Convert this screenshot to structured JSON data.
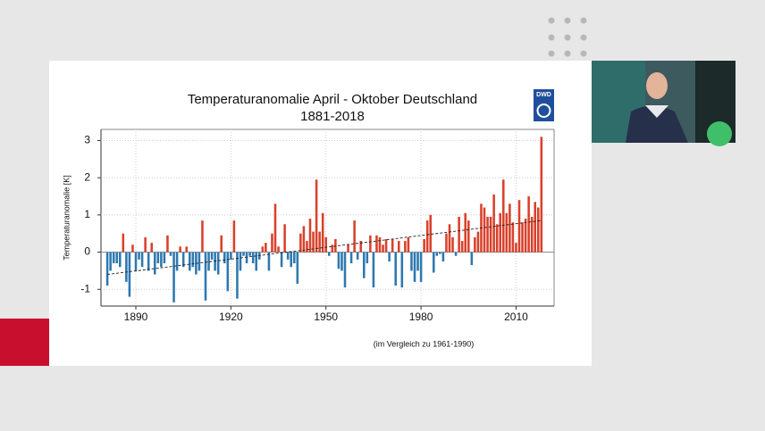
{
  "chart_data": {
    "type": "bar",
    "title": "Temperaturanomalie April - Oktober Deutschland",
    "subtitle": "1881-2018",
    "y_label": "Temperaturanomalie [K]",
    "note": "(im Vergleich zu 1961-1990)",
    "logo": "DWD",
    "positive_color": "#d9412b",
    "negative_color": "#2e78b0",
    "grid": true,
    "xlim": [
      1879,
      2022
    ],
    "xticks": [
      1890,
      1920,
      1950,
      1980,
      2010
    ],
    "ylim": [
      -1.45,
      3.3
    ],
    "yticks": [
      -1,
      0,
      1,
      2,
      3
    ],
    "x": [
      1881,
      1882,
      1883,
      1884,
      1885,
      1886,
      1887,
      1888,
      1889,
      1890,
      1891,
      1892,
      1893,
      1894,
      1895,
      1896,
      1897,
      1898,
      1899,
      1900,
      1901,
      1902,
      1903,
      1904,
      1905,
      1906,
      1907,
      1908,
      1909,
      1910,
      1911,
      1912,
      1913,
      1914,
      1915,
      1916,
      1917,
      1918,
      1919,
      1920,
      1921,
      1922,
      1923,
      1924,
      1925,
      1926,
      1927,
      1928,
      1929,
      1930,
      1931,
      1932,
      1933,
      1934,
      1935,
      1936,
      1937,
      1938,
      1939,
      1940,
      1941,
      1942,
      1943,
      1944,
      1945,
      1946,
      1947,
      1948,
      1949,
      1950,
      1951,
      1952,
      1953,
      1954,
      1955,
      1956,
      1957,
      1958,
      1959,
      1960,
      1961,
      1962,
      1963,
      1964,
      1965,
      1966,
      1967,
      1968,
      1969,
      1970,
      1971,
      1972,
      1973,
      1974,
      1975,
      1976,
      1977,
      1978,
      1979,
      1980,
      1981,
      1982,
      1983,
      1984,
      1985,
      1986,
      1987,
      1988,
      1989,
      1990,
      1991,
      1992,
      1993,
      1994,
      1995,
      1996,
      1997,
      1998,
      1999,
      2000,
      2001,
      2002,
      2003,
      2004,
      2005,
      2006,
      2007,
      2008,
      2009,
      2010,
      2011,
      2012,
      2013,
      2014,
      2015,
      2016,
      2017,
      2018
    ],
    "values": [
      -0.9,
      -0.5,
      -0.3,
      -0.3,
      -0.4,
      0.5,
      -0.8,
      -1.2,
      0.2,
      -0.5,
      -0.2,
      -0.4,
      0.4,
      -0.5,
      0.25,
      -0.6,
      -0.3,
      -0.4,
      -0.3,
      0.45,
      -0.1,
      -1.35,
      -0.5,
      0.15,
      -0.4,
      0.15,
      -0.5,
      -0.4,
      -0.6,
      -0.5,
      0.85,
      -1.3,
      -0.5,
      -0.2,
      -0.5,
      -0.6,
      0.45,
      -0.3,
      -1.05,
      -0.2,
      0.85,
      -1.25,
      -0.5,
      -0.1,
      -0.3,
      -0.1,
      -0.3,
      -0.5,
      -0.2,
      0.15,
      0.25,
      -0.5,
      0.5,
      1.3,
      0.15,
      -0.4,
      0.75,
      -0.2,
      -0.4,
      -0.3,
      -0.85,
      0.5,
      0.7,
      0.3,
      0.9,
      0.55,
      1.95,
      0.55,
      1.05,
      0.4,
      -0.1,
      0.2,
      0.35,
      -0.45,
      -0.5,
      -0.95,
      0.2,
      -0.3,
      0.85,
      -0.2,
      0.3,
      -0.7,
      -0.3,
      0.45,
      -0.95,
      0.45,
      0.4,
      0.2,
      0.35,
      -0.25,
      0.35,
      -0.9,
      0.3,
      -0.95,
      0.3,
      0.4,
      -0.5,
      -0.8,
      -0.5,
      -0.8,
      0.35,
      0.85,
      1.0,
      -0.55,
      -0.1,
      -0.05,
      -0.25,
      0.5,
      0.75,
      0.4,
      -0.1,
      0.95,
      0.3,
      1.05,
      0.85,
      -0.35,
      0.4,
      0.55,
      1.3,
      1.2,
      0.95,
      0.95,
      1.55,
      0.75,
      1.05,
      1.95,
      1.05,
      1.3,
      0.8,
      0.25,
      1.4,
      0.8,
      0.9,
      1.5,
      0.95,
      1.35,
      1.2,
      3.1
    ],
    "trend": {
      "x": [
        1881,
        2018
      ],
      "values": [
        -0.6,
        0.85
      ]
    }
  }
}
